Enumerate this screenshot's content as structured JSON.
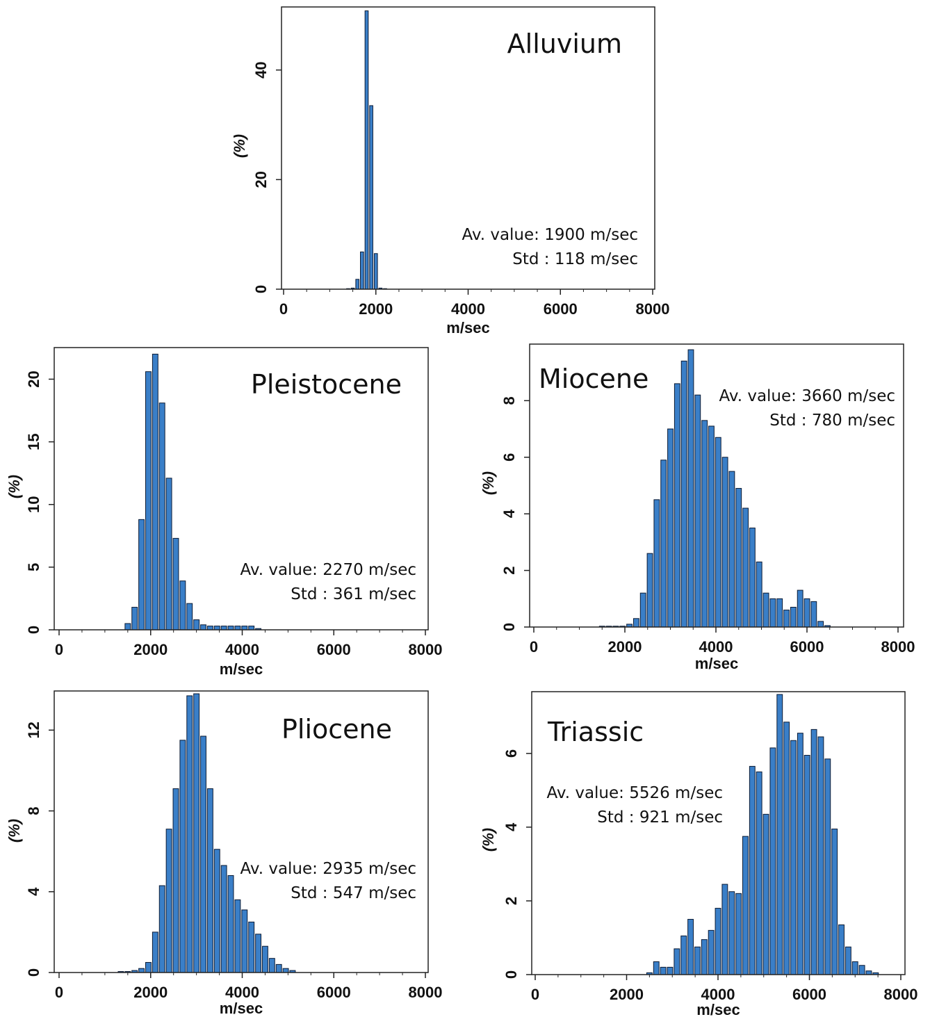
{
  "colors": {
    "bar_fill": "#3a7fc8",
    "bar_stroke": "#0b1a33",
    "axis": "#222222"
  },
  "chart_data": [
    {
      "type": "bar",
      "title": "Alluvium",
      "xlabel": "m/sec",
      "ylabel": "(%)",
      "xlim": [
        0,
        8000
      ],
      "ylim": [
        0,
        51
      ],
      "xticks": [
        0,
        2000,
        4000,
        6000,
        8000
      ],
      "yticks": [
        0,
        20,
        40
      ],
      "bin_width": 100,
      "stats": [
        "Av. value: 1900 m/sec",
        "Std : 118 m/sec"
      ],
      "x": [
        1400,
        1500,
        1600,
        1700,
        1800,
        1900,
        2000,
        2100,
        2200,
        2300
      ],
      "values": [
        0.1,
        0.2,
        1.8,
        6.8,
        50.8,
        33.5,
        6.5,
        0.2,
        0.1,
        0
      ]
    },
    {
      "type": "bar",
      "title": "Pleistocene",
      "xlabel": "m/sec",
      "ylabel": "(%)",
      "xlim": [
        0,
        8000
      ],
      "ylim": [
        0,
        22.3
      ],
      "xticks": [
        0,
        2000,
        4000,
        6000,
        8000
      ],
      "yticks": [
        0,
        5,
        10,
        15,
        20
      ],
      "bin_width": 150,
      "stats": [
        "Av. value: 2270 m/sec",
        "Std : 361 m/sec"
      ],
      "x": [
        1500,
        1650,
        1800,
        1950,
        2100,
        2250,
        2400,
        2550,
        2700,
        2850,
        3000,
        3150,
        3300,
        3450,
        3600,
        3750,
        3900,
        4050,
        4200,
        4350,
        4500
      ],
      "values": [
        0.5,
        1.8,
        8.8,
        20.6,
        22,
        18.1,
        12.1,
        7.3,
        3.9,
        2.1,
        0.8,
        0.4,
        0.3,
        0.3,
        0.3,
        0.3,
        0.3,
        0.3,
        0.3,
        0.1,
        0
      ]
    },
    {
      "type": "bar",
      "title": "Miocene",
      "xlabel": "m/sec",
      "ylabel": "(%)",
      "xlim": [
        0,
        8000
      ],
      "ylim": [
        0,
        9.9
      ],
      "xticks": [
        0,
        2000,
        4000,
        6000,
        8000
      ],
      "yticks": [
        0,
        2,
        4,
        6,
        8
      ],
      "bin_width": 150,
      "stats": [
        "Av. value: 3660 m/sec",
        "Std : 780 m/sec"
      ],
      "x": [
        1500,
        1650,
        1800,
        1950,
        2100,
        2250,
        2400,
        2550,
        2700,
        2850,
        3000,
        3150,
        3300,
        3450,
        3600,
        3750,
        3900,
        4050,
        4200,
        4350,
        4500,
        4650,
        4800,
        4950,
        5100,
        5250,
        5400,
        5550,
        5700,
        5850,
        6000,
        6150,
        6300,
        6450
      ],
      "values": [
        0.03,
        0.03,
        0.03,
        0.03,
        0.1,
        0.3,
        1.2,
        2.6,
        4.5,
        5.9,
        7,
        8.6,
        9.4,
        9.8,
        8.2,
        7.3,
        7.1,
        6.7,
        6,
        5.5,
        4.9,
        4.2,
        3.5,
        2.3,
        1.2,
        1,
        1,
        0.6,
        0.7,
        1.3,
        1,
        0.9,
        0.2,
        0.05
      ]
    },
    {
      "type": "bar",
      "title": "Pliocene",
      "xlabel": "m/sec",
      "ylabel": "(%)",
      "xlim": [
        0,
        8000
      ],
      "ylim": [
        0,
        13.8
      ],
      "xticks": [
        0,
        2000,
        4000,
        6000,
        8000
      ],
      "yticks": [
        0,
        4,
        8,
        12
      ],
      "bin_width": 150,
      "stats": [
        "Av. value: 2935 m/sec",
        "Std : 547 m/sec"
      ],
      "x": [
        1350,
        1500,
        1650,
        1800,
        1950,
        2100,
        2250,
        2400,
        2550,
        2700,
        2850,
        3000,
        3150,
        3300,
        3450,
        3600,
        3750,
        3900,
        4050,
        4200,
        4350,
        4500,
        4650,
        4800,
        4950,
        5100
      ],
      "values": [
        0.05,
        0.05,
        0.1,
        0.2,
        0.5,
        2,
        4.3,
        7.1,
        9.1,
        11.5,
        13.7,
        13.8,
        11.7,
        9.1,
        6.1,
        5.3,
        4.8,
        3.6,
        3.1,
        2.5,
        1.9,
        1.3,
        0.7,
        0.4,
        0.2,
        0.1
      ]
    },
    {
      "type": "bar",
      "title": "Triassic",
      "xlabel": "m/sec",
      "ylabel": "(%)",
      "xlim": [
        0,
        8000
      ],
      "ylim": [
        0,
        7.6
      ],
      "xticks": [
        0,
        2000,
        4000,
        6000,
        8000
      ],
      "yticks": [
        0,
        2,
        4,
        6
      ],
      "bin_width": 150,
      "stats": [
        "Av. value: 5526 m/sec",
        "Std : 921 m/sec"
      ],
      "x": [
        2500,
        2650,
        2800,
        2950,
        3100,
        3250,
        3400,
        3550,
        3700,
        3850,
        4000,
        4150,
        4300,
        4450,
        4600,
        4750,
        4900,
        5050,
        5200,
        5350,
        5500,
        5650,
        5800,
        5950,
        6100,
        6250,
        6400,
        6550,
        6700,
        6850,
        7000,
        7150,
        7300,
        7450,
        7600
      ],
      "values": [
        0.05,
        0.35,
        0.2,
        0.2,
        0.7,
        1.05,
        1.5,
        0.75,
        0.95,
        1.2,
        1.8,
        2.45,
        2.25,
        2.2,
        3.75,
        5.65,
        5.5,
        4.35,
        6.15,
        7.6,
        6.85,
        6.35,
        6.55,
        5.95,
        6.65,
        6.45,
        5.85,
        3.95,
        1.35,
        0.75,
        0.35,
        0.25,
        0.1,
        0.05,
        0
      ]
    }
  ]
}
